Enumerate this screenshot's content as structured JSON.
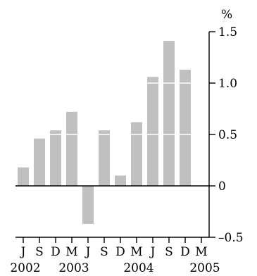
{
  "chart_data": {
    "type": "bar",
    "unit_label": "%",
    "categories": [
      "J",
      "S",
      "D",
      "M",
      "J",
      "S",
      "D",
      "M",
      "J",
      "S",
      "D",
      "M"
    ],
    "values": [
      0.18,
      0.46,
      0.54,
      0.72,
      -0.37,
      0.54,
      0.1,
      0.62,
      1.06,
      1.41,
      1.13,
      null
    ],
    "year_labels": [
      {
        "label": "2002",
        "category_index": 0
      },
      {
        "label": "2003",
        "category_index": 3
      },
      {
        "label": "2004",
        "category_index": 7
      },
      {
        "label": "2005",
        "category_index": 11
      }
    ],
    "y_ticks": [
      1.5,
      1.0,
      0.5,
      0,
      -0.5
    ],
    "y_tick_labels": [
      "1.5",
      "1.0",
      "0.5",
      "0",
      "–0.5"
    ],
    "ylim": [
      -0.5,
      1.5
    ],
    "axis_position": "right",
    "grid": false,
    "gridline_breaks_on_bars": true,
    "colors": {
      "bar": "#c0c0c0",
      "axis": "#000000",
      "background": "#ffffff"
    }
  }
}
